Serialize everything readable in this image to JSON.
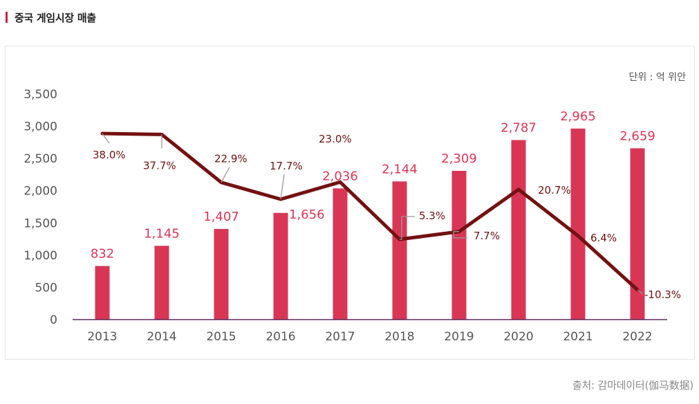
{
  "header": {
    "title": "중국 게임시장 매출"
  },
  "source": "출처: 감마데이터(伽马数据)",
  "colors": {
    "bar": "#d93656",
    "line": "#731111",
    "bar_label": "#d93656",
    "growth_label": "#6b1010",
    "axis": "#5a2a5a",
    "tick": "#555555",
    "header_bar": "#c2244a"
  },
  "chart_data": {
    "type": "bar",
    "title": "",
    "unit_label": "단위 : 억 위안",
    "categories": [
      "2013",
      "2014",
      "2015",
      "2016",
      "2017",
      "2018",
      "2019",
      "2020",
      "2021",
      "2022"
    ],
    "values": [
      832,
      1145,
      1407,
      1656,
      2036,
      2144,
      2309,
      2787,
      2965,
      2659
    ],
    "value_labels": [
      "832",
      "1,145",
      "1,407",
      "1,656",
      "2,036",
      "2,144",
      "2,309",
      "2,787",
      "2,965",
      "2,659"
    ],
    "growth_series": {
      "values": [
        38.0,
        37.7,
        22.9,
        17.7,
        23.0,
        5.3,
        7.7,
        20.7,
        6.4,
        -10.3
      ],
      "labels": [
        "38.0%",
        "37.7%",
        "22.9%",
        "17.7%",
        "23.0%",
        "5.3%",
        "7.7%",
        "20.7%",
        "6.4%",
        "-10.3%"
      ]
    },
    "ylim": [
      0,
      3500
    ],
    "yticks": [
      0,
      500,
      1000,
      1500,
      2000,
      2500,
      3000,
      3500
    ],
    "ytick_labels": [
      "0",
      "500",
      "1,000",
      "1,500",
      "2,000",
      "2,500",
      "3,000",
      "3,500"
    ],
    "xlabel": "",
    "ylabel": "",
    "grid": false,
    "legend": "none"
  }
}
